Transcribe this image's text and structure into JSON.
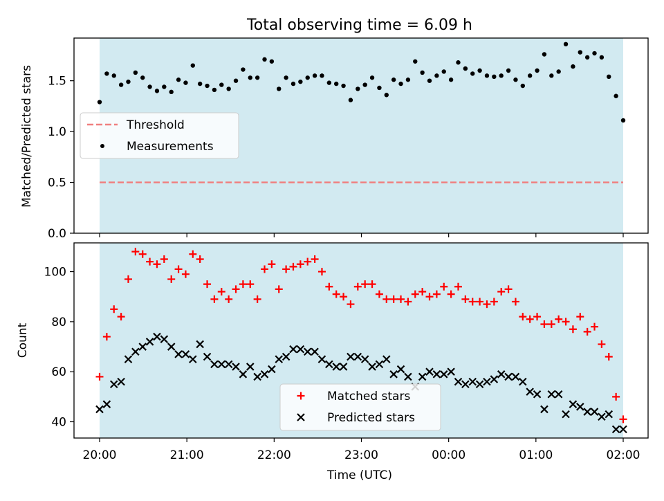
{
  "chart_data": {
    "title": "Total observing time = 6.09 h",
    "type": "scatter",
    "xlabel": "Time (UTC)",
    "x_ticks": [
      "20:00",
      "21:00",
      "22:00",
      "23:00",
      "00:00",
      "01:00",
      "02:00"
    ],
    "shaded_band_color": "#add8e6",
    "top_panel": {
      "ylabel": "Matched/Predicted stars",
      "ylim": [
        0,
        1.92
      ],
      "y_ticks": [
        "0.0",
        "0.5",
        "1.0",
        "1.5"
      ],
      "legend_position": "center-left",
      "threshold": {
        "name": "Threshold",
        "value": 0.5,
        "color": "#f08080",
        "style": "dashed"
      },
      "series": [
        {
          "name": "Measurements",
          "color": "#000000",
          "marker": "dot",
          "values": [
            1.29,
            1.57,
            1.55,
            1.46,
            1.49,
            1.58,
            1.53,
            1.44,
            1.4,
            1.44,
            1.39,
            1.51,
            1.48,
            1.65,
            1.47,
            1.45,
            1.41,
            1.46,
            1.42,
            1.5,
            1.61,
            1.53,
            1.53,
            1.71,
            1.69,
            1.42,
            1.53,
            1.47,
            1.49,
            1.53,
            1.55,
            1.55,
            1.48,
            1.47,
            1.45,
            1.31,
            1.42,
            1.46,
            1.53,
            1.43,
            1.36,
            1.51,
            1.47,
            1.51,
            1.69,
            1.58,
            1.5,
            1.55,
            1.59,
            1.51,
            1.68,
            1.62,
            1.57,
            1.6,
            1.55,
            1.54,
            1.55,
            1.6,
            1.51,
            1.45,
            1.55,
            1.6,
            1.76,
            1.55,
            1.59,
            1.86,
            1.64,
            1.78,
            1.73,
            1.77,
            1.73,
            1.54,
            1.35,
            1.11
          ]
        }
      ]
    },
    "bottom_panel": {
      "ylabel": "Count",
      "ylim": [
        33.5,
        111.5
      ],
      "y_ticks": [
        "40",
        "60",
        "80",
        "100"
      ],
      "legend_position": "bottom-center",
      "series": [
        {
          "name": "Matched stars",
          "color": "#ff0000",
          "marker": "plus",
          "values": [
            58,
            74,
            85,
            82,
            97,
            108,
            107,
            104,
            103,
            105,
            97,
            101,
            99,
            107,
            105,
            95,
            89,
            92,
            89,
            93,
            95,
            95,
            89,
            101,
            103,
            93,
            101,
            102,
            103,
            104,
            105,
            100,
            94,
            91,
            90,
            87,
            94,
            95,
            95,
            91,
            89,
            89,
            89,
            88,
            91,
            92,
            90,
            91,
            94,
            91,
            94,
            89,
            88,
            88,
            87,
            88,
            92,
            93,
            88,
            82,
            81,
            82,
            79,
            79,
            81,
            80,
            77,
            82,
            76,
            78,
            71,
            66,
            50,
            41
          ]
        },
        {
          "name": "Predicted stars",
          "color": "#000000",
          "marker": "x",
          "values": [
            45,
            47,
            55,
            56,
            65,
            68,
            70,
            72,
            74,
            73,
            70,
            67,
            67,
            65,
            71,
            66,
            63,
            63,
            63,
            62,
            59,
            62,
            58,
            59,
            61,
            65,
            66,
            69,
            69,
            68,
            68,
            65,
            63,
            62,
            62,
            66,
            66,
            65,
            62,
            63,
            65,
            59,
            61,
            58,
            54,
            58,
            60,
            59,
            59,
            60,
            56,
            55,
            56,
            55,
            56,
            57,
            59,
            58,
            58,
            56,
            52,
            51,
            45,
            51,
            51,
            43,
            47,
            46,
            44,
            44,
            42,
            43,
            37,
            37
          ]
        }
      ]
    }
  }
}
